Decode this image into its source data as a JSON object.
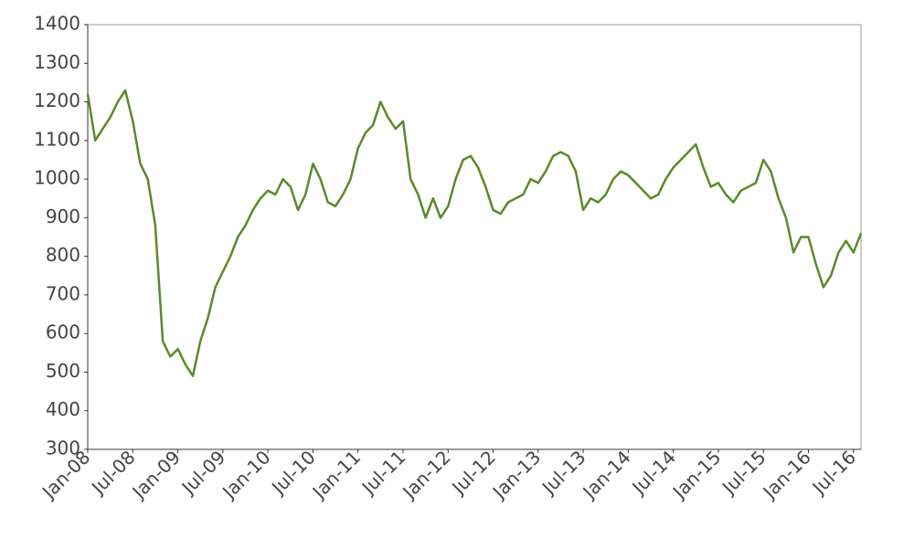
{
  "chart_data": {
    "type": "line",
    "x": [
      "2008-01",
      "2008-02",
      "2008-03",
      "2008-04",
      "2008-05",
      "2008-06",
      "2008-07",
      "2008-08",
      "2008-09",
      "2008-10",
      "2008-11",
      "2008-12",
      "2009-01",
      "2009-02",
      "2009-03",
      "2009-04",
      "2009-05",
      "2009-06",
      "2009-07",
      "2009-08",
      "2009-09",
      "2009-10",
      "2009-11",
      "2009-12",
      "2010-01",
      "2010-02",
      "2010-03",
      "2010-04",
      "2010-05",
      "2010-06",
      "2010-07",
      "2010-08",
      "2010-09",
      "2010-10",
      "2010-11",
      "2010-12",
      "2011-01",
      "2011-02",
      "2011-03",
      "2011-04",
      "2011-05",
      "2011-06",
      "2011-07",
      "2011-08",
      "2011-09",
      "2011-10",
      "2011-11",
      "2011-12",
      "2012-01",
      "2012-02",
      "2012-03",
      "2012-04",
      "2012-05",
      "2012-06",
      "2012-07",
      "2012-08",
      "2012-09",
      "2012-10",
      "2012-11",
      "2012-12",
      "2013-01",
      "2013-02",
      "2013-03",
      "2013-04",
      "2013-05",
      "2013-06",
      "2013-07",
      "2013-08",
      "2013-09",
      "2013-10",
      "2013-11",
      "2013-12",
      "2014-01",
      "2014-02",
      "2014-03",
      "2014-04",
      "2014-05",
      "2014-06",
      "2014-07",
      "2014-08",
      "2014-09",
      "2014-10",
      "2014-11",
      "2014-12",
      "2015-01",
      "2015-02",
      "2015-03",
      "2015-04",
      "2015-05",
      "2015-06",
      "2015-07",
      "2015-08",
      "2015-09",
      "2015-10",
      "2015-11",
      "2015-12",
      "2016-01",
      "2016-02",
      "2016-03",
      "2016-04",
      "2016-05",
      "2016-06",
      "2016-07",
      "2016-08"
    ],
    "series": [
      {
        "color": "#5a8a2a",
        "values": [
          1220,
          1100,
          1130,
          1160,
          1200,
          1230,
          1150,
          1040,
          1000,
          880,
          580,
          540,
          560,
          520,
          490,
          580,
          640,
          720,
          760,
          800,
          850,
          880,
          920,
          950,
          970,
          960,
          1000,
          980,
          920,
          960,
          1040,
          1000,
          940,
          930,
          960,
          1000,
          1080,
          1120,
          1140,
          1200,
          1160,
          1130,
          1150,
          1000,
          960,
          900,
          950,
          900,
          930,
          1000,
          1050,
          1060,
          1030,
          980,
          920,
          910,
          940,
          950,
          960,
          1000,
          990,
          1020,
          1060,
          1070,
          1060,
          1020,
          920,
          950,
          940,
          960,
          1000,
          1020,
          1010,
          990,
          970,
          950,
          960,
          1000,
          1030,
          1050,
          1070,
          1090,
          1030,
          980,
          990,
          960,
          940,
          970,
          980,
          990,
          1050,
          1020,
          950,
          900,
          810,
          850,
          850,
          780,
          720,
          750,
          810,
          840,
          810,
          860
        ]
      }
    ],
    "xlim": [
      "2008-01",
      "2016-08"
    ],
    "xticks": [
      {
        "value": "2008-01",
        "label": "Jan-08"
      },
      {
        "value": "2008-07",
        "label": "Jul-08"
      },
      {
        "value": "2009-01",
        "label": "Jan-09"
      },
      {
        "value": "2009-07",
        "label": "Jul-09"
      },
      {
        "value": "2010-01",
        "label": "Jan-10"
      },
      {
        "value": "2010-07",
        "label": "Jul-10"
      },
      {
        "value": "2011-01",
        "label": "Jan-11"
      },
      {
        "value": "2011-07",
        "label": "Jul-11"
      },
      {
        "value": "2012-01",
        "label": "Jan-12"
      },
      {
        "value": "2012-07",
        "label": "Jul-12"
      },
      {
        "value": "2013-01",
        "label": "Jan-13"
      },
      {
        "value": "2013-07",
        "label": "Jul-13"
      },
      {
        "value": "2014-01",
        "label": "Jan-14"
      },
      {
        "value": "2014-07",
        "label": "Jul-14"
      },
      {
        "value": "2015-01",
        "label": "Jan-15"
      },
      {
        "value": "2015-07",
        "label": "Jul-15"
      },
      {
        "value": "2016-01",
        "label": "Jan-16"
      },
      {
        "value": "2016-07",
        "label": "Jul-16"
      }
    ],
    "ylim": [
      300,
      1400
    ],
    "yticks": [
      300,
      400,
      500,
      600,
      700,
      800,
      900,
      1000,
      1100,
      1200,
      1300,
      1400
    ]
  }
}
